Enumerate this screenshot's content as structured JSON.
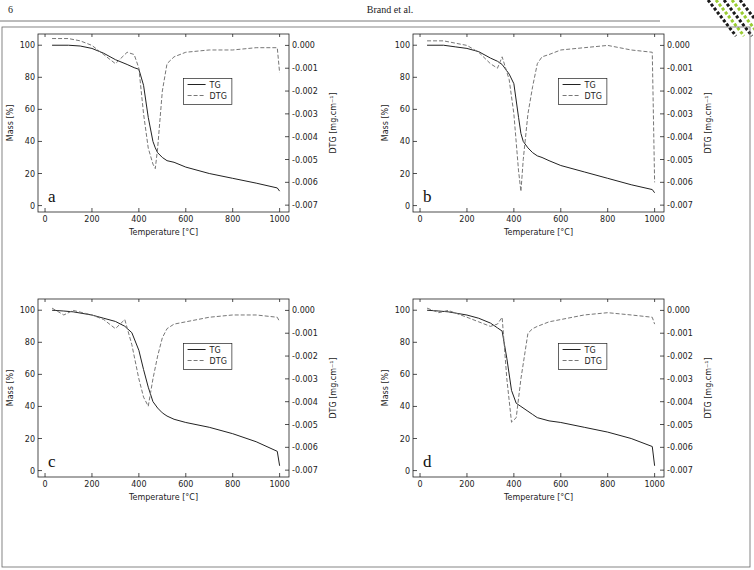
{
  "header": {
    "page": "6",
    "running_head": "Brand et al."
  },
  "chart_data": [
    {
      "type": "line",
      "panel": "a",
      "x": [
        30,
        100,
        150,
        200,
        250,
        300,
        350,
        380,
        400,
        420,
        440,
        460,
        470,
        480,
        500,
        520,
        550,
        600,
        700,
        800,
        900,
        990,
        1000
      ],
      "xlim": [
        -30,
        1040
      ],
      "xticks": [
        0,
        200,
        400,
        600,
        800,
        1000
      ],
      "x_label": "Temperature [°C]",
      "ylim": [
        -4,
        107
      ],
      "yticks": [
        0,
        20,
        40,
        60,
        80,
        100
      ],
      "y_label": "Mass [%]",
      "y2lim": [
        -0.0073,
        0.0005
      ],
      "y2ticks": [
        {
          "value": 0,
          "label": "0.000"
        },
        {
          "value": -0.001,
          "label": "-0.001"
        },
        {
          "value": -0.002,
          "label": "-0.002"
        },
        {
          "value": -0.003,
          "label": "-0.003"
        },
        {
          "value": -0.004,
          "label": "-0.004"
        },
        {
          "value": -0.005,
          "label": "-0.005"
        },
        {
          "value": -0.006,
          "label": "-0.006"
        },
        {
          "value": -0.007,
          "label": "-0.007"
        }
      ],
      "y2_label": "DTG [mg.cm⁻¹]",
      "legend": "right",
      "series": [
        {
          "name": "TG",
          "color": "#222222",
          "line_style": "solid",
          "values": [
            100,
            100,
            99.5,
            98,
            95,
            91,
            88,
            86,
            85,
            75,
            55,
            40,
            36,
            33,
            30,
            28,
            27,
            24,
            20,
            17,
            14,
            11,
            9
          ]
        },
        {
          "name": "DTG",
          "color": "#777777",
          "line_style": "dashed",
          "axis": "y2",
          "values": [
            0.0003,
            0.0003,
            0.0002,
            0,
            -0.0004,
            -0.0008,
            -0.0003,
            -0.0004,
            -0.001,
            -0.003,
            -0.0045,
            -0.0052,
            -0.0054,
            -0.0045,
            -0.002,
            -0.0008,
            -0.0005,
            -0.0003,
            -0.0002,
            -0.0002,
            -0.0001,
            -0.0001,
            -0.0012
          ]
        }
      ]
    },
    {
      "type": "line",
      "panel": "b",
      "x": [
        30,
        100,
        150,
        200,
        250,
        300,
        330,
        350,
        380,
        400,
        420,
        430,
        440,
        460,
        480,
        500,
        520,
        550,
        600,
        700,
        800,
        900,
        990,
        1000
      ],
      "xlim": [
        -30,
        1040
      ],
      "xticks": [
        0,
        200,
        400,
        600,
        800,
        1000
      ],
      "x_label": "Temperature [°C]",
      "ylim": [
        -4,
        107
      ],
      "yticks": [
        0,
        20,
        40,
        60,
        80,
        100
      ],
      "y_label": "Mass [%]",
      "y2lim": [
        -0.0073,
        0.0005
      ],
      "y2ticks": [
        {
          "value": 0,
          "label": "0.000"
        },
        {
          "value": -0.001,
          "label": "-0.001"
        },
        {
          "value": -0.002,
          "label": "-0.002"
        },
        {
          "value": -0.003,
          "label": "-0.003"
        },
        {
          "value": -0.004,
          "label": "-0.004"
        },
        {
          "value": -0.005,
          "label": "-0.005"
        },
        {
          "value": -0.006,
          "label": "-0.006"
        },
        {
          "value": -0.007,
          "label": "-0.007"
        }
      ],
      "y2_label": "DTG [mg.cm⁻¹]",
      "legend": "right",
      "series": [
        {
          "name": "TG",
          "color": "#222222",
          "line_style": "solid",
          "values": [
            100,
            100,
            99,
            98,
            96,
            92,
            90,
            88,
            82,
            76,
            55,
            45,
            40,
            36,
            33,
            31,
            30,
            28,
            25,
            21,
            17,
            13,
            10,
            8
          ]
        },
        {
          "name": "DTG",
          "color": "#777777",
          "line_style": "dashed",
          "axis": "y2",
          "values": [
            0.0002,
            0.0002,
            0.0001,
            0,
            -0.0003,
            -0.0008,
            -0.001,
            -0.0005,
            -0.0015,
            -0.003,
            -0.0055,
            -0.0064,
            -0.005,
            -0.003,
            -0.0018,
            -0.0008,
            -0.0005,
            -0.0004,
            -0.0002,
            -0.0001,
            0,
            -0.0002,
            -0.0003,
            -0.006
          ]
        }
      ]
    },
    {
      "type": "line",
      "panel": "c",
      "x": [
        30,
        80,
        120,
        200,
        250,
        300,
        340,
        370,
        400,
        420,
        440,
        460,
        480,
        500,
        520,
        550,
        600,
        700,
        800,
        900,
        990,
        1000
      ],
      "xlim": [
        -30,
        1040
      ],
      "xticks": [
        0,
        200,
        400,
        600,
        800,
        1000
      ],
      "x_label": "Temperature [°C]",
      "ylim": [
        -4,
        107
      ],
      "yticks": [
        0,
        20,
        40,
        60,
        80,
        100
      ],
      "y_label": "Mass [%]",
      "y2lim": [
        -0.0073,
        0.0005
      ],
      "y2ticks": [
        {
          "value": 0,
          "label": "0.000"
        },
        {
          "value": -0.001,
          "label": "-0.001"
        },
        {
          "value": -0.002,
          "label": "-0.002"
        },
        {
          "value": -0.003,
          "label": "-0.003"
        },
        {
          "value": -0.004,
          "label": "-0.004"
        },
        {
          "value": -0.005,
          "label": "-0.005"
        },
        {
          "value": -0.006,
          "label": "-0.006"
        },
        {
          "value": -0.007,
          "label": "-0.007"
        }
      ],
      "y2_label": "DTG [mg.cm⁻¹]",
      "legend": "right",
      "series": [
        {
          "name": "TG",
          "color": "#222222",
          "line_style": "solid",
          "values": [
            100,
            99.5,
            99,
            97,
            95,
            93,
            90,
            86,
            75,
            63,
            52,
            43,
            39,
            36,
            34,
            32,
            30,
            27,
            23,
            18,
            12,
            3
          ]
        },
        {
          "name": "DTG",
          "color": "#777777",
          "line_style": "dashed",
          "axis": "y2",
          "values": [
            0.0001,
            -0.0002,
            0,
            -0.0002,
            -0.0004,
            -0.0008,
            -0.0004,
            -0.0015,
            -0.003,
            -0.0038,
            -0.0042,
            -0.003,
            -0.002,
            -0.0012,
            -0.0008,
            -0.0006,
            -0.0005,
            -0.0003,
            -0.0002,
            -0.0002,
            -0.0003,
            -0.0005
          ]
        }
      ]
    },
    {
      "type": "line",
      "panel": "d",
      "x": [
        30,
        80,
        120,
        200,
        250,
        300,
        330,
        350,
        370,
        390,
        410,
        430,
        460,
        480,
        500,
        550,
        600,
        700,
        800,
        900,
        990,
        1000
      ],
      "xlim": [
        -30,
        1040
      ],
      "xticks": [
        0,
        200,
        400,
        600,
        800,
        1000
      ],
      "x_label": "Temperature [°C]",
      "ylim": [
        -4,
        107
      ],
      "yticks": [
        0,
        20,
        40,
        60,
        80,
        100
      ],
      "y_label": "Mass [%]",
      "y2lim": [
        -0.0073,
        0.0005
      ],
      "y2ticks": [
        {
          "value": 0,
          "label": "0.000"
        },
        {
          "value": -0.001,
          "label": "-0.001"
        },
        {
          "value": -0.002,
          "label": "-0.002"
        },
        {
          "value": -0.003,
          "label": "-0.003"
        },
        {
          "value": -0.004,
          "label": "-0.004"
        },
        {
          "value": -0.005,
          "label": "-0.005"
        },
        {
          "value": -0.006,
          "label": "-0.006"
        },
        {
          "value": -0.007,
          "label": "-0.007"
        }
      ],
      "y2_label": "DTG [mg.cm⁻¹]",
      "legend": "right",
      "series": [
        {
          "name": "TG",
          "color": "#222222",
          "line_style": "solid",
          "values": [
            100,
            99.5,
            99,
            97,
            95,
            92,
            89,
            87,
            70,
            50,
            42,
            40,
            37,
            35,
            33,
            31,
            30,
            27,
            24,
            20,
            15,
            3
          ]
        },
        {
          "name": "DTG",
          "color": "#777777",
          "line_style": "dashed",
          "axis": "y2",
          "values": [
            0.0001,
            -0.0001,
            0,
            -0.0003,
            -0.0005,
            -0.0007,
            -0.0006,
            -0.0003,
            -0.003,
            -0.0049,
            -0.0047,
            -0.003,
            -0.001,
            -0.0008,
            -0.0007,
            -0.0005,
            -0.0004,
            -0.0002,
            -0.0001,
            -0.0002,
            -0.0003,
            -0.0006
          ]
        }
      ]
    }
  ]
}
